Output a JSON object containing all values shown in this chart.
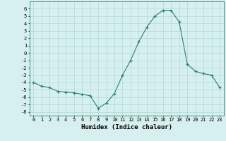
{
  "x": [
    0,
    1,
    2,
    3,
    4,
    5,
    6,
    7,
    8,
    9,
    10,
    11,
    12,
    13,
    14,
    15,
    16,
    17,
    18,
    19,
    20,
    21,
    22,
    23
  ],
  "y": [
    -4,
    -4.5,
    -4.7,
    -5.2,
    -5.3,
    -5.4,
    -5.6,
    -5.8,
    -7.5,
    -6.8,
    -5.5,
    -3.0,
    -1.0,
    1.5,
    3.5,
    5.0,
    5.8,
    5.8,
    4.2,
    -1.5,
    -2.5,
    -2.8,
    -3.0,
    -4.7
  ],
  "xlabel": "Humidex (Indice chaleur)",
  "ylabel": "",
  "ylim": [
    -8.5,
    7.0
  ],
  "xlim": [
    -0.5,
    23.5
  ],
  "yticks": [
    6,
    5,
    4,
    3,
    2,
    1,
    0,
    -1,
    -2,
    -3,
    -4,
    -5,
    -6,
    -7,
    -8
  ],
  "xticks": [
    0,
    1,
    2,
    3,
    4,
    5,
    6,
    7,
    8,
    9,
    10,
    11,
    12,
    13,
    14,
    15,
    16,
    17,
    18,
    19,
    20,
    21,
    22,
    23
  ],
  "line_color": "#2e7d6e",
  "marker_color": "#2e7d6e",
  "bg_color": "#d6f0ef",
  "grid_color": "#b0d8d4",
  "axis_fontsize": 6.5,
  "tick_fontsize": 5.0
}
